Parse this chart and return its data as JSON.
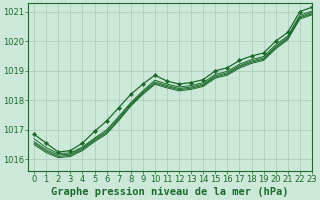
{
  "title": "",
  "xlabel": "Graphe pression niveau de la mer (hPa)",
  "ylabel": "",
  "bg_color": "#cce8d8",
  "grid_color": "#aac8b8",
  "line_color": "#1a6b2a",
  "xlim": [
    -0.5,
    23
  ],
  "ylim": [
    1015.6,
    1021.3
  ],
  "yticks": [
    1016,
    1017,
    1018,
    1019,
    1020,
    1021
  ],
  "xticks": [
    0,
    1,
    2,
    3,
    4,
    5,
    6,
    7,
    8,
    9,
    10,
    11,
    12,
    13,
    14,
    15,
    16,
    17,
    18,
    19,
    20,
    21,
    22,
    23
  ],
  "lines": [
    [
      1016.85,
      1016.55,
      1016.25,
      1016.3,
      1016.55,
      1016.95,
      1017.3,
      1017.75,
      1018.2,
      1018.55,
      1018.85,
      1018.65,
      1018.55,
      1018.6,
      1018.7,
      1019.0,
      1019.1,
      1019.35,
      1019.5,
      1019.6,
      1020.0,
      1020.3,
      1021.0,
      1021.15
    ],
    [
      1016.7,
      1016.4,
      1016.2,
      1016.22,
      1016.42,
      1016.72,
      1017.0,
      1017.45,
      1017.92,
      1018.32,
      1018.68,
      1018.55,
      1018.45,
      1018.5,
      1018.6,
      1018.88,
      1018.98,
      1019.22,
      1019.38,
      1019.48,
      1019.88,
      1020.18,
      1020.88,
      1021.02
    ],
    [
      1016.6,
      1016.33,
      1016.15,
      1016.18,
      1016.38,
      1016.68,
      1016.95,
      1017.4,
      1017.88,
      1018.28,
      1018.62,
      1018.5,
      1018.4,
      1018.45,
      1018.55,
      1018.83,
      1018.93,
      1019.17,
      1019.33,
      1019.43,
      1019.82,
      1020.13,
      1020.83,
      1020.97
    ],
    [
      1016.55,
      1016.28,
      1016.1,
      1016.14,
      1016.34,
      1016.64,
      1016.9,
      1017.35,
      1017.84,
      1018.24,
      1018.58,
      1018.46,
      1018.36,
      1018.41,
      1018.51,
      1018.79,
      1018.89,
      1019.13,
      1019.29,
      1019.39,
      1019.78,
      1020.09,
      1020.79,
      1020.93
    ],
    [
      1016.5,
      1016.23,
      1016.06,
      1016.1,
      1016.3,
      1016.6,
      1016.86,
      1017.31,
      1017.8,
      1018.2,
      1018.54,
      1018.42,
      1018.32,
      1018.37,
      1018.47,
      1018.75,
      1018.85,
      1019.09,
      1019.25,
      1019.35,
      1019.74,
      1020.05,
      1020.75,
      1020.89
    ]
  ],
  "xlabel_fontsize": 7.5,
  "tick_fontsize": 6.0
}
